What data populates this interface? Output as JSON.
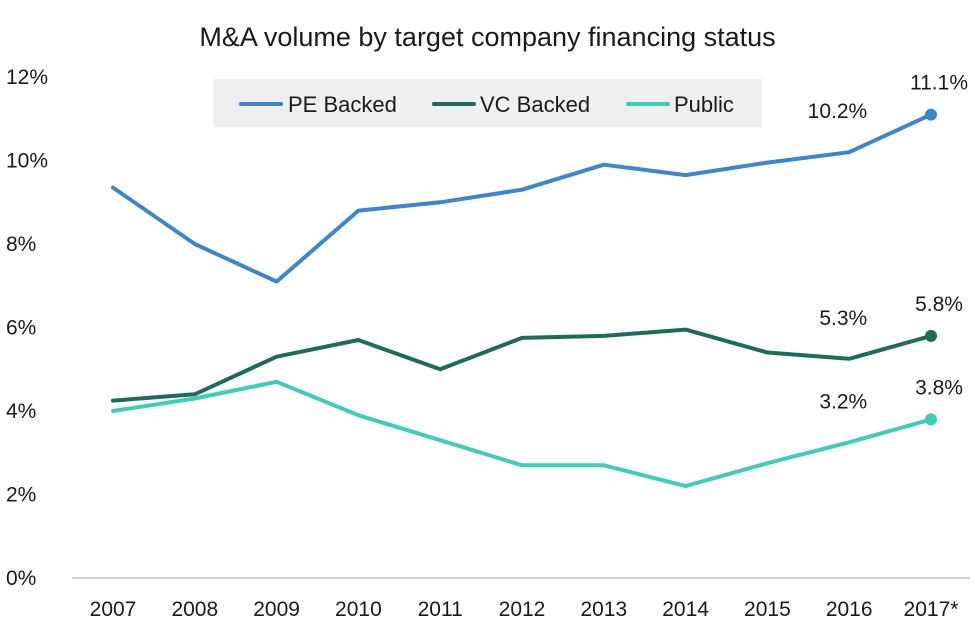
{
  "chart_data": {
    "type": "line",
    "title": "M&A volume by target company financing status",
    "xlabel": "",
    "ylabel": "",
    "categories": [
      "2007",
      "2008",
      "2009",
      "2010",
      "2011",
      "2012",
      "2013",
      "2014",
      "2015",
      "2016",
      "2017*"
    ],
    "ylim": [
      0,
      12
    ],
    "yticks": [
      "0%",
      "2%",
      "4%",
      "6%",
      "8%",
      "10%",
      "12%"
    ],
    "grid": false,
    "legend_position": "top",
    "series": [
      {
        "name": "PE Backed",
        "color": "#3a87cf",
        "values": [
          9.35,
          8.0,
          7.1,
          8.8,
          9.0,
          9.3,
          9.9,
          9.65,
          9.95,
          10.2,
          11.1
        ],
        "labels": [
          {
            "index": 9,
            "text": "10.2%"
          },
          {
            "index": 10,
            "text": "11.1%"
          }
        ]
      },
      {
        "name": "VC Backed",
        "color": "#1e6b5b",
        "values": [
          4.25,
          4.4,
          5.3,
          5.7,
          5.0,
          5.75,
          5.8,
          5.95,
          5.4,
          5.25,
          5.8
        ],
        "labels": [
          {
            "index": 9,
            "text": "5.3%"
          },
          {
            "index": 10,
            "text": "5.8%"
          }
        ]
      },
      {
        "name": "Public",
        "color": "#3ecdb8",
        "values": [
          4.0,
          4.3,
          4.7,
          3.9,
          3.3,
          2.7,
          2.7,
          2.2,
          2.75,
          3.25,
          3.8
        ],
        "labels": [
          {
            "index": 9,
            "text": "3.2%"
          },
          {
            "index": 10,
            "text": "3.8%"
          }
        ]
      }
    ],
    "legend_background": "#efefef",
    "axis_color": "#bfbfbf"
  }
}
